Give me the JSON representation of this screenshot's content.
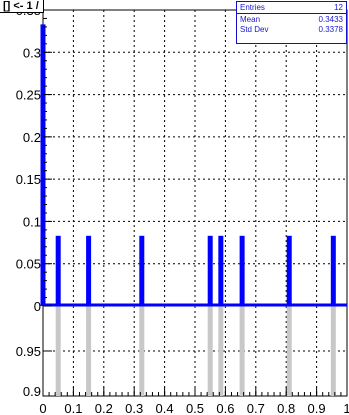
{
  "title": "[] <- 1 /",
  "stats": {
    "entries_label": "Entries",
    "entries_value": "12",
    "mean_label": "Mean",
    "mean_value": "0.3433",
    "std_label": "Std Dev",
    "std_value": "0.3378"
  },
  "colors": {
    "histogram": "#0000ff",
    "ratio": "#c8c8c8",
    "grid": "#000000",
    "axis": "#000000"
  },
  "chart_data": [
    {
      "type": "bar",
      "title": "",
      "xlabel": "",
      "ylabel": "",
      "xlim": [
        0,
        1
      ],
      "ylim": [
        0,
        0.35
      ],
      "grid": true,
      "x_ticks": [
        "0",
        "0.1",
        "0.2",
        "0.3",
        "0.4",
        "0.5",
        "0.6",
        "0.7",
        "0.8",
        "0.9",
        "1"
      ],
      "y_ticks": [
        "0",
        "0.05",
        "0.1",
        "0.15",
        "0.2",
        "0.25",
        "0.3",
        "0.35"
      ],
      "y_tick_values": [
        0,
        0.05,
        0.1,
        0.15,
        0.2,
        0.25,
        0.3,
        0.35
      ],
      "bins": [
        {
          "x": 0.0,
          "value": 0.333
        },
        {
          "x": 0.05,
          "value": 0.083
        },
        {
          "x": 0.15,
          "value": 0.083
        },
        {
          "x": 0.325,
          "value": 0.083
        },
        {
          "x": 0.55,
          "value": 0.083
        },
        {
          "x": 0.585,
          "value": 0.083
        },
        {
          "x": 0.655,
          "value": 0.083
        },
        {
          "x": 0.81,
          "value": 0.083
        },
        {
          "x": 0.955,
          "value": 0.083
        }
      ]
    },
    {
      "type": "bar",
      "title": "",
      "xlim": [
        0,
        1
      ],
      "ylim": [
        0.9,
        1.0
      ],
      "grid": true,
      "y_ticks": [
        "0.9",
        "0.95"
      ],
      "y_tick_values": [
        0.9,
        0.95
      ],
      "bins": [
        {
          "x": 0.05,
          "value": 1.0
        },
        {
          "x": 0.15,
          "value": 1.0
        },
        {
          "x": 0.325,
          "value": 1.0
        },
        {
          "x": 0.55,
          "value": 1.0
        },
        {
          "x": 0.585,
          "value": 1.0
        },
        {
          "x": 0.655,
          "value": 1.0
        },
        {
          "x": 0.81,
          "value": 1.0
        },
        {
          "x": 0.955,
          "value": 1.0
        }
      ]
    }
  ]
}
